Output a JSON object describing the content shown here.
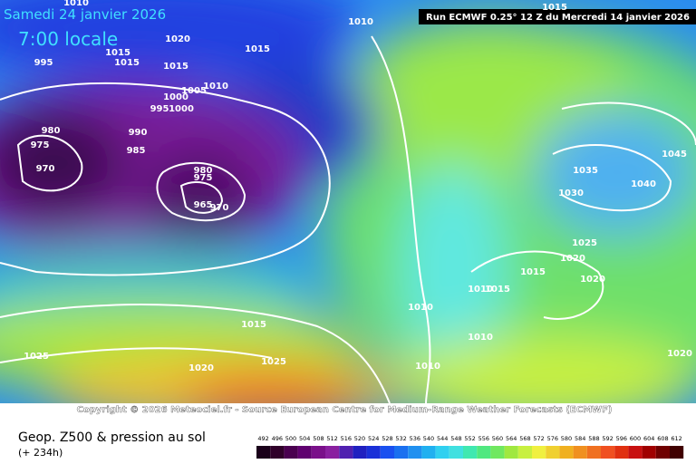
{
  "header": {
    "date": "Samedi 24 janvier 2026",
    "time": "7:00 locale",
    "run": "Run ECMWF 0.25° 12 Z du Mercredi 14 janvier 2026"
  },
  "map": {
    "isobar_labels": [
      1010,
      1015,
      1010,
      1020,
      1015,
      1015,
      1015,
      1015,
      995,
      1010,
      1005,
      1000,
      995,
      1000,
      980,
      990,
      975,
      985,
      970,
      980,
      975,
      965,
      970,
      1035,
      1030,
      1040,
      1045,
      1025,
      1020,
      1015,
      1020,
      1015,
      1010,
      1010,
      1015,
      1010,
      1025,
      1025,
      1020,
      1010,
      1020
    ]
  },
  "footer": {
    "copyright": "Copyright © 2026 Meteociel.fr - Source European Centre for Medium-Range Weather Forecasts (ECMWF)",
    "title": "Geop. Z500 & pression au sol",
    "lead": "(+ 234h)",
    "scale": [
      492,
      496,
      500,
      504,
      508,
      512,
      516,
      520,
      524,
      528,
      532,
      536,
      540,
      544,
      548,
      552,
      556,
      560,
      564,
      568,
      572,
      576,
      580,
      584,
      588,
      592,
      596,
      600,
      604,
      608,
      612
    ]
  }
}
